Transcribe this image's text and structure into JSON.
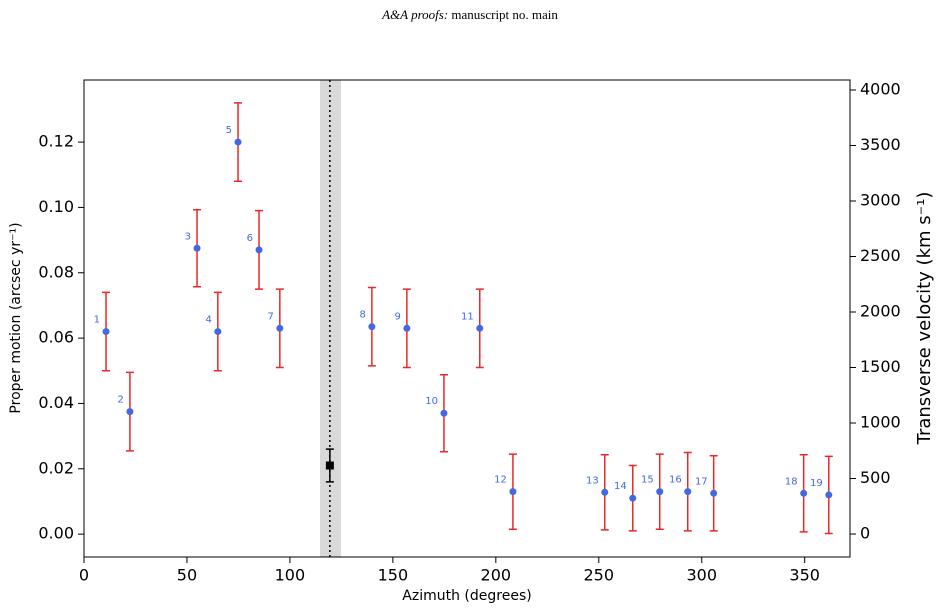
{
  "header": {
    "journal": "A&A proofs:",
    "text": "manuscript no. main"
  },
  "chart_data": {
    "type": "scatter",
    "xlabel": "Azimuth (degrees)",
    "ylabel": "Proper motion (arcsec yr⁻¹)",
    "y2label": "Transverse velocity (km s⁻¹)",
    "point_labels": [
      "1",
      "2",
      "3",
      "4",
      "5",
      "6",
      "7",
      "8",
      "9",
      "10",
      "11",
      "12",
      "13",
      "14",
      "15",
      "16",
      "17",
      "18",
      "19"
    ],
    "x": [
      10.7,
      22.3,
      54.9,
      65,
      74.8,
      85,
      95.1,
      139.8,
      156.8,
      174.8,
      192.2,
      208.3,
      252.9,
      266.5,
      279.6,
      293.2,
      305.8,
      349.5,
      361.7
    ],
    "values": [
      0.062,
      0.0375,
      0.0875,
      0.062,
      0.12,
      0.087,
      0.063,
      0.0635,
      0.063,
      0.037,
      0.063,
      0.013,
      0.0128,
      0.011,
      0.013,
      0.013,
      0.0125,
      0.0125,
      0.012
    ],
    "errors": [
      0.012,
      0.012,
      0.0118,
      0.012,
      0.012,
      0.012,
      0.012,
      0.012,
      0.012,
      0.0118,
      0.012,
      0.0115,
      0.0115,
      0.01,
      0.0115,
      0.012,
      0.0115,
      0.0118,
      0.0118
    ],
    "color": "#4169e1",
    "error_color": "#e8292b",
    "reference": {
      "x": 119.4,
      "value": 0.021,
      "error": 0.005,
      "color": "#000000"
    },
    "band": [
      114.6,
      124.8
    ],
    "band_color": "#d9d9d9",
    "xlim": [
      0,
      372
    ],
    "xticks": [
      0,
      50,
      100,
      150,
      200,
      250,
      300,
      350
    ],
    "ylim": [
      -0.007,
      0.139
    ],
    "yticks": [
      {
        "value": 0,
        "label": "0.00"
      },
      {
        "value": 0.02,
        "label": "0.02"
      },
      {
        "value": 0.04,
        "label": "0.04"
      },
      {
        "value": 0.06,
        "label": "0.06"
      },
      {
        "value": 0.08,
        "label": "0.08"
      },
      {
        "value": 0.1,
        "label": "0.10"
      },
      {
        "value": 0.12,
        "label": "0.12"
      }
    ],
    "y2lim": [
      -207,
      4090
    ],
    "y2ticks": [
      0,
      500,
      1000,
      1500,
      2000,
      2500,
      3000,
      3500,
      4000
    ]
  }
}
